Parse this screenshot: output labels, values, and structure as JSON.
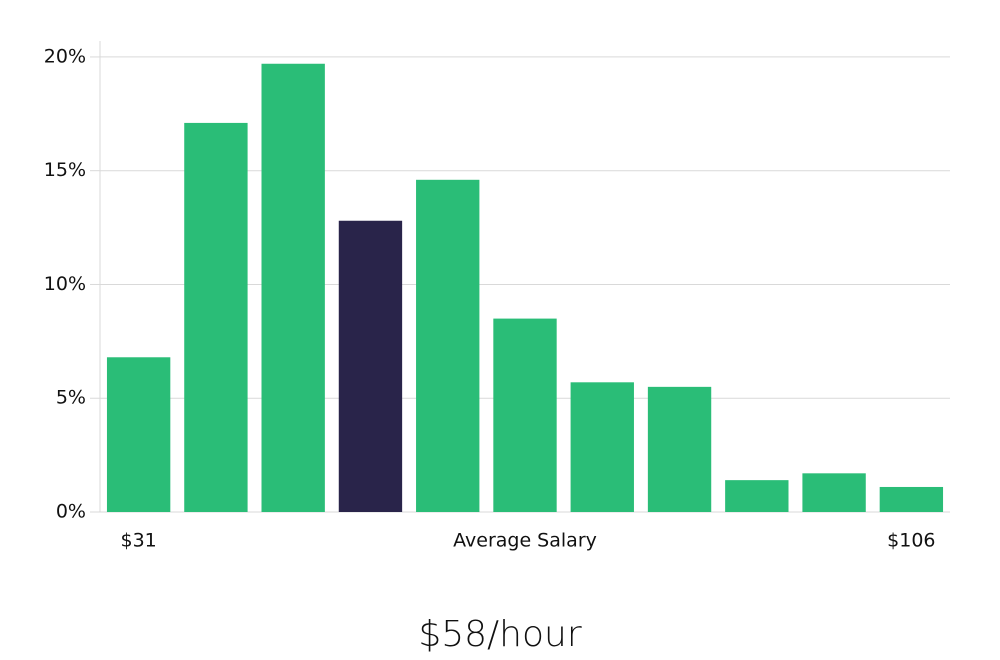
{
  "chart_data": {
    "type": "bar",
    "subtitle": "$58/hour",
    "x_label": "Average Salary",
    "categories": [
      "$31",
      null,
      null,
      null,
      null,
      null,
      null,
      null,
      null,
      null,
      "$106"
    ],
    "values": [
      6.8,
      17.1,
      19.7,
      12.8,
      14.6,
      8.5,
      5.7,
      5.5,
      1.4,
      1.7,
      1.1
    ],
    "colors": [
      "#2abd77",
      "#2abd77",
      "#2abd77",
      "#29244a",
      "#2abd77",
      "#2abd77",
      "#2abd77",
      "#2abd77",
      "#2abd77",
      "#2abd77",
      "#2abd77"
    ],
    "ylim": [
      0,
      20.7
    ],
    "yticks": [
      {
        "value": 0,
        "label": "0%"
      },
      {
        "value": 5,
        "label": "5%"
      },
      {
        "value": 10,
        "label": "10%"
      },
      {
        "value": 15,
        "label": "15%"
      },
      {
        "value": 20,
        "label": "20%"
      }
    ],
    "grid": true
  }
}
